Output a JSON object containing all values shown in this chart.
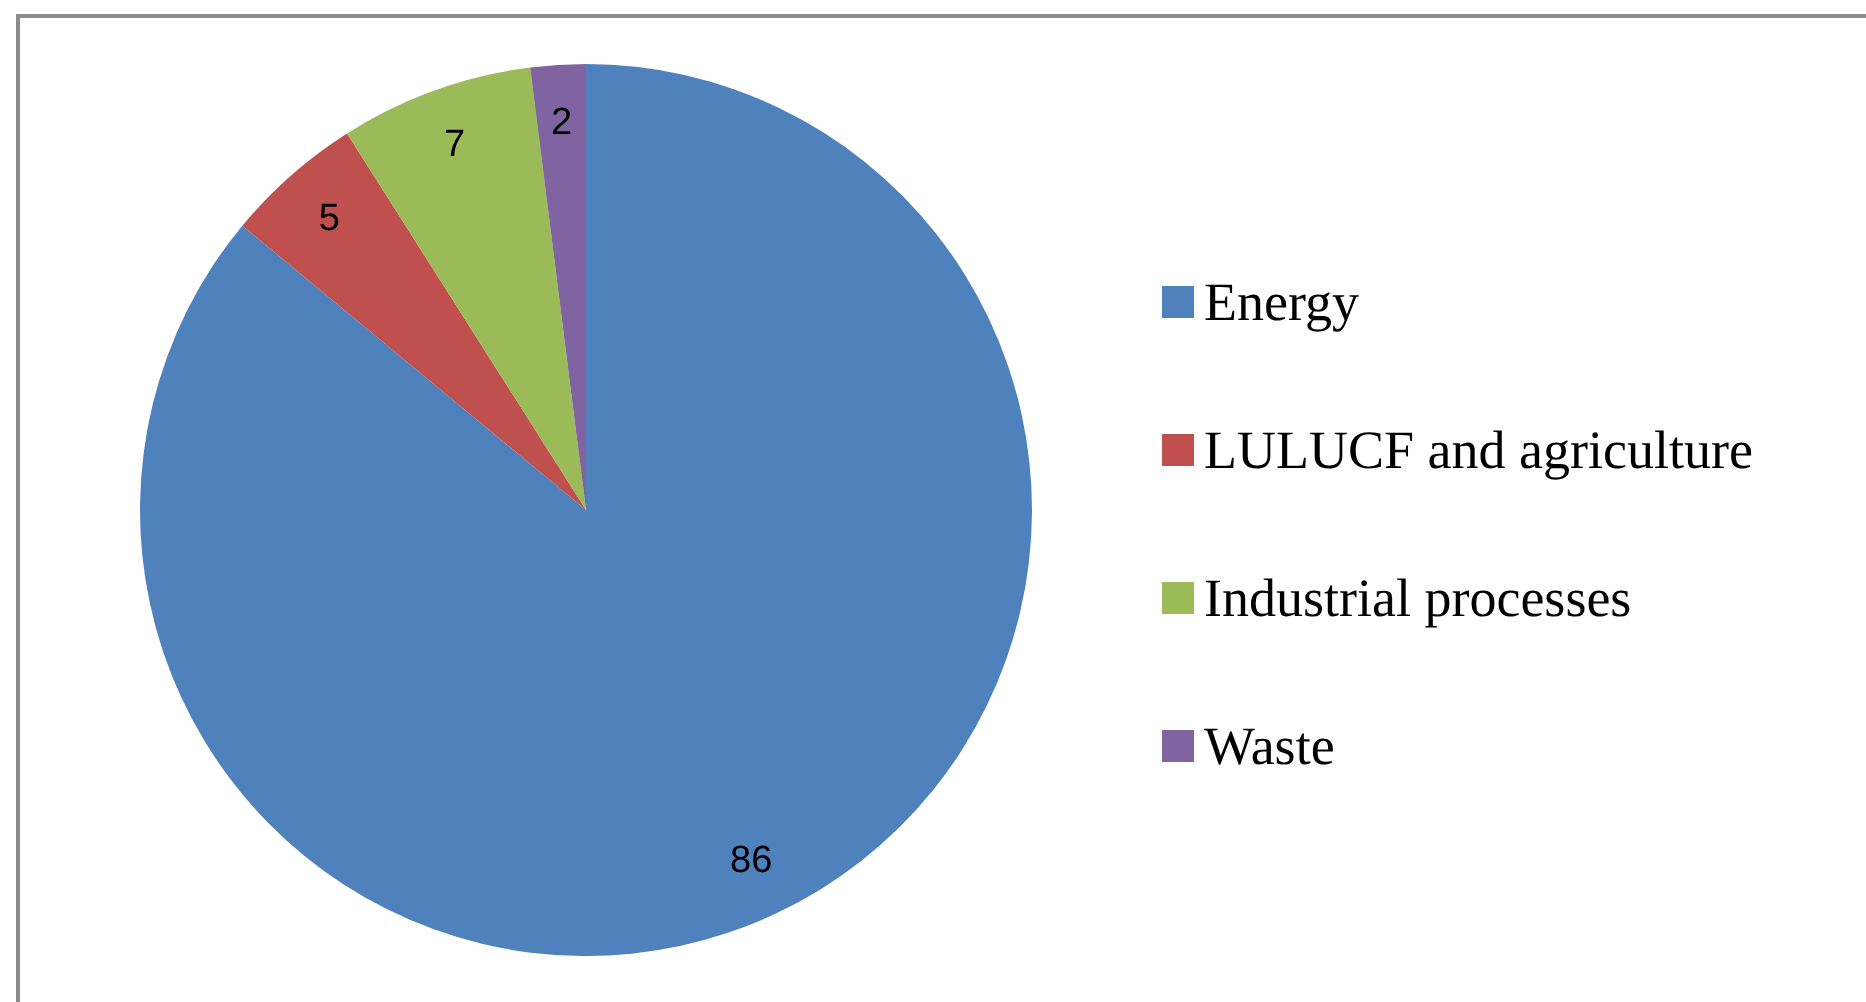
{
  "chart_data": {
    "type": "pie",
    "categories": [
      "Energy",
      "LULUCF and agriculture",
      "Industrial processes",
      "Waste"
    ],
    "values": [
      86,
      5,
      7,
      2
    ],
    "colors": [
      "#4f81bd",
      "#c0504d",
      "#9bbb59",
      "#8064a2"
    ],
    "data_labels": true,
    "legend": "right"
  }
}
